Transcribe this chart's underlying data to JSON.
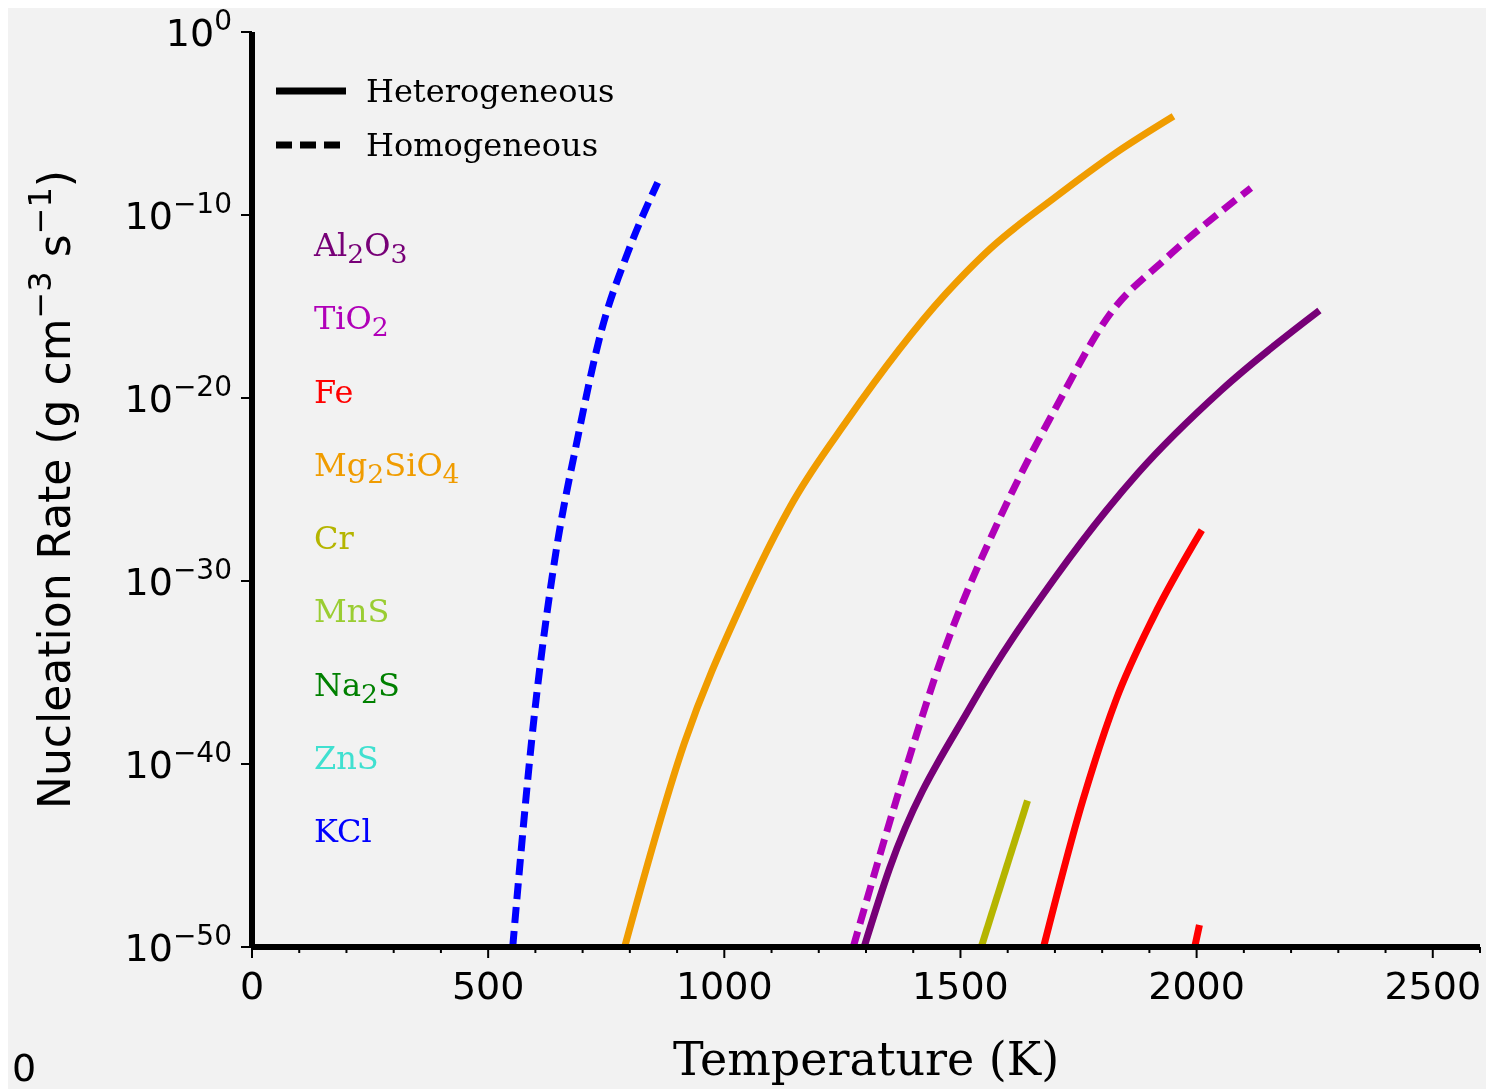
{
  "chart_data": {
    "type": "line",
    "xlabel": "Temperature (K)",
    "ylabel": "Nucleation Rate (g cm$^{−3}$ s$^{−1}$)",
    "log": "y",
    "xlim": [
      0,
      2600
    ],
    "xticks": [
      0,
      {
        "value": 100,
        "label": null
      },
      {
        "value": 200,
        "label": null
      },
      {
        "value": 300,
        "label": null
      },
      {
        "value": 400,
        "label": null
      },
      500,
      {
        "value": 600,
        "label": null
      },
      {
        "value": 700,
        "label": null
      },
      {
        "value": 800,
        "label": null
      },
      {
        "value": 900,
        "label": null
      },
      1000,
      {
        "value": 1100,
        "label": null
      },
      {
        "value": 1200,
        "label": null
      },
      {
        "value": 1300,
        "label": null
      },
      {
        "value": 1400,
        "label": null
      },
      1500,
      {
        "value": 1600,
        "label": null
      },
      {
        "value": 1700,
        "label": null
      },
      {
        "value": 1800,
        "label": null
      },
      {
        "value": 1900,
        "label": null
      },
      2000,
      {
        "value": 2100,
        "label": null
      },
      {
        "value": 2200,
        "label": null
      },
      {
        "value": 2300,
        "label": null
      },
      {
        "value": 2400,
        "label": null
      },
      2500,
      {
        "value": 2600,
        "label": null
      }
    ],
    "ylim": [
      1e-50,
      1
    ],
    "yticks": [
      {
        "value": 1e-50,
        "label": "10$^{−50}$"
      },
      {
        "value": 1e-40,
        "label": "10$^{−40}$"
      },
      {
        "value": 1e-30,
        "label": "10$^{−30}$"
      },
      {
        "value": 1e-20,
        "label": "10$^{−20}$"
      },
      {
        "value": 1e-10,
        "label": "10$^{−10}$"
      },
      {
        "value": 1,
        "label": "10$^{0}$"
      }
    ],
    "legend": "top left",
    "annotations": [
      "0"
    ],
    "series": [
      {
        "name": "Heterogeneous",
        "color": "#000000",
        "line_style": "solid"
      },
      {
        "name": "Homogeneous",
        "color": "#000000",
        "line_style": "dashed"
      },
      {
        "name": "Al$_{2}$O$_{3}$",
        "color": "#770077",
        "line_style": "solid",
        "x": [
          1296,
          1350,
          1525,
          1701,
          1876,
          2051,
          2260
        ],
        "values": [
          1e-50,
          2e-46,
          2e-37,
          1.6e-30,
          8e-25,
          2.5e-20,
          6e-16
        ]
      },
      {
        "name": "TiO$_{2}$",
        "color": "#b000b8",
        "line_style": "dashed",
        "x": [
          1273,
          1373,
          1467,
          1584,
          1702,
          1817,
          1934,
          2115
        ],
        "values": [
          1e-50,
          6e-42,
          2e-34,
          3e-27,
          3e-21,
          4e-16,
          4e-13,
          3e-09
        ]
      },
      {
        "name": "Fe",
        "color": "#ff0000",
        "line_style": "solid",
        "x": [
          1676,
          1759,
          1829,
          1908,
          2011,
          2003,
          1996,
          2006
        ],
        "values": [
          1e-50,
          1e-42,
          3e-37,
          1e-32,
          6e-28,
          null,
          1e-50,
          1.6e-49
        ]
      },
      {
        "name": "Mg$_{2}$SiO$_{4}$",
        "color": "#f09c00",
        "line_style": "solid",
        "x": [
          789,
          915,
          1036,
          1147,
          1258,
          1469,
          1565,
          1697,
          1829,
          1951
        ],
        "values": [
          1e-50,
          1.3e-39,
          5e-32,
          2.5e-26,
          5e-22,
          5e-15,
          1.6e-12,
          8e-10,
          2.5e-07,
          2.5e-05
        ]
      },
      {
        "name": "Cr",
        "color": "#b5b500",
        "line_style": "solid",
        "x": [
          1544,
          1642
        ],
        "values": [
          1e-50,
          1e-42
        ]
      },
      {
        "name": "MnS",
        "color": "#9acd32"
      },
      {
        "name": "Na$_{2}$S",
        "color": "#008000"
      },
      {
        "name": "ZnS",
        "color": "#40e0d0"
      },
      {
        "name": "KCl",
        "color": "#0000ff",
        "line_style": "dashed",
        "x": [
          552,
          597,
          640,
          691,
          740,
          795,
          859
        ],
        "values": [
          1e-50,
          3e-38,
          1e-29,
          1e-22,
          5e-17,
          8e-13,
          6e-09
        ]
      }
    ]
  }
}
